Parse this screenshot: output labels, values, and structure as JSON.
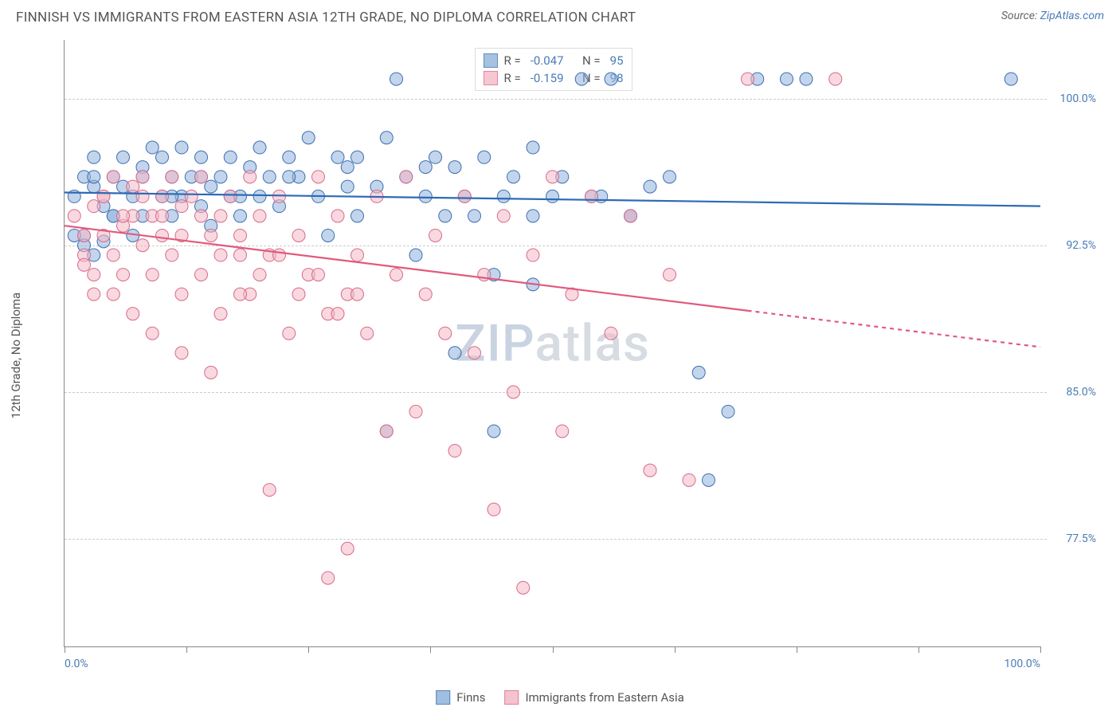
{
  "title": "FINNISH VS IMMIGRANTS FROM EASTERN ASIA 12TH GRADE, NO DIPLOMA CORRELATION CHART",
  "source_label": "Source:",
  "source_name": "ZipAtlas.com",
  "yaxis_label": "12th Grade, No Diploma",
  "watermark": "ZIPatlas",
  "chart": {
    "type": "scatter",
    "background_color": "#ffffff",
    "grid_color": "#cccccc",
    "axis_color": "#888888",
    "xlim": [
      0,
      100
    ],
    "ylim": [
      72,
      103
    ],
    "yticks": [
      77.5,
      85.0,
      92.5,
      100.0
    ],
    "ytick_labels": [
      "77.5%",
      "85.0%",
      "92.5%",
      "100.0%"
    ],
    "xtick_positions": [
      0,
      12.5,
      25,
      37.5,
      50,
      62.5,
      75,
      87.5,
      100
    ],
    "xaxis_min_label": "0.0%",
    "xaxis_max_label": "100.0%",
    "marker_radius": 8,
    "marker_opacity": 0.55,
    "line_width": 2.2
  },
  "series": [
    {
      "name": "Finns",
      "fill_color": "#8fb3dc",
      "stroke_color": "#3d6fb0",
      "line_color": "#2e6ab3",
      "R": "-0.047",
      "N": "95",
      "trend": {
        "x1": 0,
        "y1": 95.2,
        "x2": 100,
        "y2": 94.5,
        "solid_until": 100
      },
      "points": [
        [
          1,
          95
        ],
        [
          2,
          96
        ],
        [
          2,
          93
        ],
        [
          3,
          95.5
        ],
        [
          3,
          97
        ],
        [
          4,
          94.5
        ],
        [
          5,
          96
        ],
        [
          5,
          94
        ],
        [
          6,
          97
        ],
        [
          6,
          95.5
        ],
        [
          7,
          95
        ],
        [
          7,
          93
        ],
        [
          8,
          96.5
        ],
        [
          8,
          94
        ],
        [
          9,
          97.5
        ],
        [
          10,
          95
        ],
        [
          10,
          97
        ],
        [
          11,
          94
        ],
        [
          11,
          96
        ],
        [
          12,
          97.5
        ],
        [
          12,
          95
        ],
        [
          13,
          96
        ],
        [
          14,
          94.5
        ],
        [
          14,
          97
        ],
        [
          15,
          95.5
        ],
        [
          15,
          93.5
        ],
        [
          16,
          96
        ],
        [
          17,
          97
        ],
        [
          17,
          95
        ],
        [
          18,
          94
        ],
        [
          19,
          96.5
        ],
        [
          20,
          97.5
        ],
        [
          20,
          95
        ],
        [
          21,
          96
        ],
        [
          22,
          94.5
        ],
        [
          23,
          97
        ],
        [
          24,
          96
        ],
        [
          25,
          98
        ],
        [
          26,
          95
        ],
        [
          27,
          93
        ],
        [
          28,
          97
        ],
        [
          29,
          96.5
        ],
        [
          30,
          94
        ],
        [
          30,
          97
        ],
        [
          32,
          95.5
        ],
        [
          33,
          98
        ],
        [
          34,
          101
        ],
        [
          35,
          96
        ],
        [
          36,
          92
        ],
        [
          37,
          95
        ],
        [
          38,
          97
        ],
        [
          39,
          94
        ],
        [
          40,
          96.5
        ],
        [
          41,
          95
        ],
        [
          42,
          94
        ],
        [
          43,
          97
        ],
        [
          44,
          91
        ],
        [
          45,
          95
        ],
        [
          46,
          96
        ],
        [
          48,
          97.5
        ],
        [
          50,
          95
        ],
        [
          51,
          96
        ],
        [
          53,
          101
        ],
        [
          55,
          95
        ],
        [
          56,
          101
        ],
        [
          58,
          94
        ],
        [
          60,
          95.5
        ],
        [
          62,
          96
        ],
        [
          65,
          86
        ],
        [
          66,
          80.5
        ],
        [
          68,
          84
        ],
        [
          33,
          83
        ],
        [
          40,
          87
        ],
        [
          44,
          83
        ],
        [
          48,
          90.5
        ],
        [
          2,
          92.5
        ],
        [
          3,
          92
        ],
        [
          4,
          92.7
        ],
        [
          71,
          101
        ],
        [
          74,
          101
        ],
        [
          76,
          101
        ],
        [
          97,
          101
        ],
        [
          58,
          94
        ],
        [
          54,
          95
        ],
        [
          48,
          94
        ],
        [
          37,
          96.5
        ],
        [
          29,
          95.5
        ],
        [
          23,
          96
        ],
        [
          18,
          95
        ],
        [
          14,
          96
        ],
        [
          11,
          95
        ],
        [
          8,
          96
        ],
        [
          5,
          94
        ],
        [
          3,
          96
        ],
        [
          1,
          93
        ]
      ]
    },
    {
      "name": "Immigrants from Eastern Asia",
      "fill_color": "#f4b8c6",
      "stroke_color": "#d76b8a",
      "line_color": "#e05a7d",
      "R": "-0.159",
      "N": "98",
      "trend": {
        "x1": 0,
        "y1": 93.5,
        "x2": 100,
        "y2": 87.3,
        "solid_until": 70
      },
      "points": [
        [
          1,
          94
        ],
        [
          2,
          93
        ],
        [
          2,
          92
        ],
        [
          3,
          94.5
        ],
        [
          3,
          91
        ],
        [
          4,
          95
        ],
        [
          4,
          93
        ],
        [
          5,
          92
        ],
        [
          5,
          96
        ],
        [
          6,
          93.5
        ],
        [
          6,
          91
        ],
        [
          7,
          94
        ],
        [
          7,
          95.5
        ],
        [
          8,
          92.5
        ],
        [
          8,
          96
        ],
        [
          9,
          91
        ],
        [
          9,
          94
        ],
        [
          10,
          95
        ],
        [
          10,
          93
        ],
        [
          11,
          96
        ],
        [
          11,
          92
        ],
        [
          12,
          94.5
        ],
        [
          12,
          90
        ],
        [
          13,
          95
        ],
        [
          14,
          91
        ],
        [
          14,
          96
        ],
        [
          15,
          93
        ],
        [
          16,
          94
        ],
        [
          16,
          89
        ],
        [
          17,
          95
        ],
        [
          18,
          92
        ],
        [
          19,
          96
        ],
        [
          19,
          90
        ],
        [
          20,
          94
        ],
        [
          21,
          80
        ],
        [
          22,
          95
        ],
        [
          23,
          88
        ],
        [
          24,
          93
        ],
        [
          25,
          91
        ],
        [
          26,
          96
        ],
        [
          27,
          75.5
        ],
        [
          27,
          89
        ],
        [
          28,
          94
        ],
        [
          29,
          77
        ],
        [
          29,
          90
        ],
        [
          30,
          92
        ],
        [
          31,
          88
        ],
        [
          32,
          95
        ],
        [
          33,
          83
        ],
        [
          34,
          91
        ],
        [
          35,
          96
        ],
        [
          36,
          84
        ],
        [
          37,
          90
        ],
        [
          38,
          93
        ],
        [
          39,
          88
        ],
        [
          40,
          82
        ],
        [
          41,
          95
        ],
        [
          42,
          87
        ],
        [
          43,
          91
        ],
        [
          44,
          79
        ],
        [
          45,
          94
        ],
        [
          46,
          85
        ],
        [
          47,
          75
        ],
        [
          48,
          92
        ],
        [
          50,
          96
        ],
        [
          51,
          83
        ],
        [
          52,
          90
        ],
        [
          54,
          95
        ],
        [
          56,
          88
        ],
        [
          58,
          94
        ],
        [
          60,
          81
        ],
        [
          62,
          91
        ],
        [
          2,
          91.5
        ],
        [
          3,
          90
        ],
        [
          5,
          90
        ],
        [
          7,
          89
        ],
        [
          9,
          88
        ],
        [
          12,
          87
        ],
        [
          15,
          86
        ],
        [
          18,
          90
        ],
        [
          21,
          92
        ],
        [
          64,
          80.5
        ],
        [
          70,
          101
        ],
        [
          79,
          101
        ],
        [
          4,
          95
        ],
        [
          6,
          94
        ],
        [
          8,
          95
        ],
        [
          10,
          94
        ],
        [
          12,
          93
        ],
        [
          14,
          94
        ],
        [
          16,
          92
        ],
        [
          18,
          93
        ],
        [
          20,
          91
        ],
        [
          22,
          92
        ],
        [
          24,
          90
        ],
        [
          26,
          91
        ],
        [
          28,
          89
        ],
        [
          30,
          90
        ]
      ]
    }
  ],
  "legend_top": {
    "r_label": "R =",
    "n_label": "N ="
  },
  "legend_bottom_labels": [
    "Finns",
    "Immigrants from Eastern Asia"
  ]
}
